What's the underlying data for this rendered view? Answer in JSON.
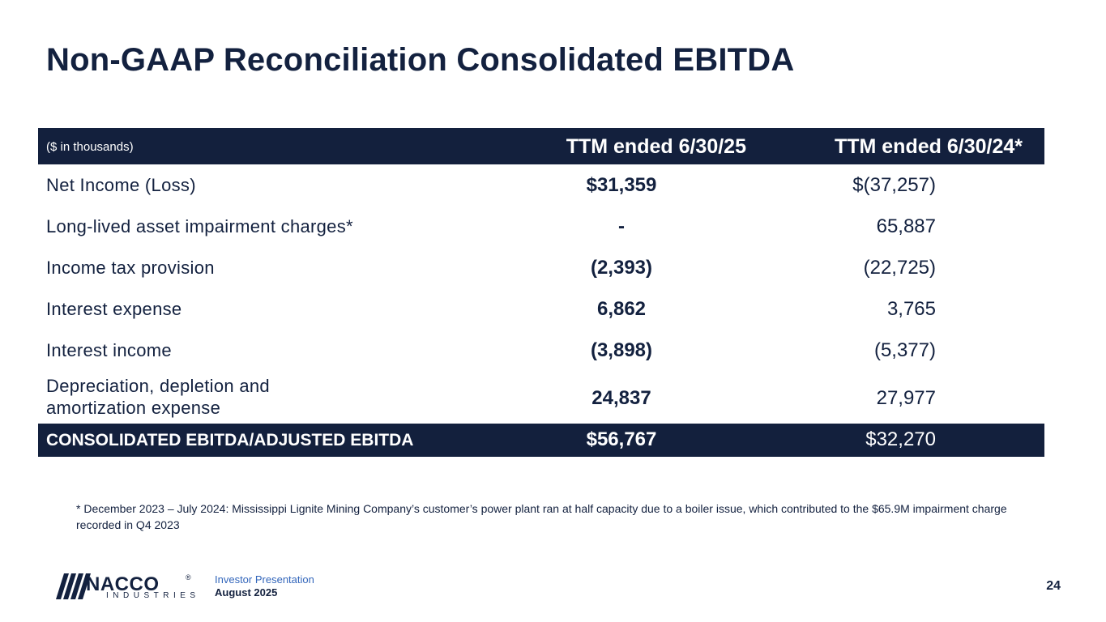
{
  "title": "Non-GAAP Reconciliation Consolidated EBITDA",
  "table": {
    "units": "($ in thousands)",
    "col1_header": "TTM ended 6/30/25",
    "col2_header": "TTM ended 6/30/24*",
    "rows": [
      {
        "label": "Net Income (Loss)",
        "v1": "$31,359",
        "v2": "$(37,257)"
      },
      {
        "label": "Long-lived asset impairment charges*",
        "v1": "-",
        "v2": "65,887"
      },
      {
        "label": "Income tax provision",
        "v1": "(2,393)",
        "v2": "(22,725)"
      },
      {
        "label": "Interest expense",
        "v1": "6,862",
        "v2": "3,765"
      },
      {
        "label": "Interest income",
        "v1": "(3,898)",
        "v2": "(5,377)"
      },
      {
        "label": "Depreciation, depletion and amortization expense",
        "v1": "24,837",
        "v2": "27,977"
      }
    ],
    "total": {
      "label": "CONSOLIDATED EBITDA/ADJUSTED EBITDA",
      "v1": "$56,767",
      "v2": "$32,270"
    }
  },
  "footnote": "* December 2023 – July 2024: Mississippi Lignite Mining Company’s customer’s power plant ran at half capacity due to a boiler issue, which contributed to the $65.9M impairment charge recorded in Q4 2023",
  "footer": {
    "logo_name": "NACCO",
    "logo_reg": "®",
    "logo_sub": "INDUSTRIES",
    "presentation": "Investor Presentation",
    "date": "August 2025",
    "page_number": "24"
  },
  "colors": {
    "navy": "#13203d",
    "accent_blue": "#3366bb"
  }
}
